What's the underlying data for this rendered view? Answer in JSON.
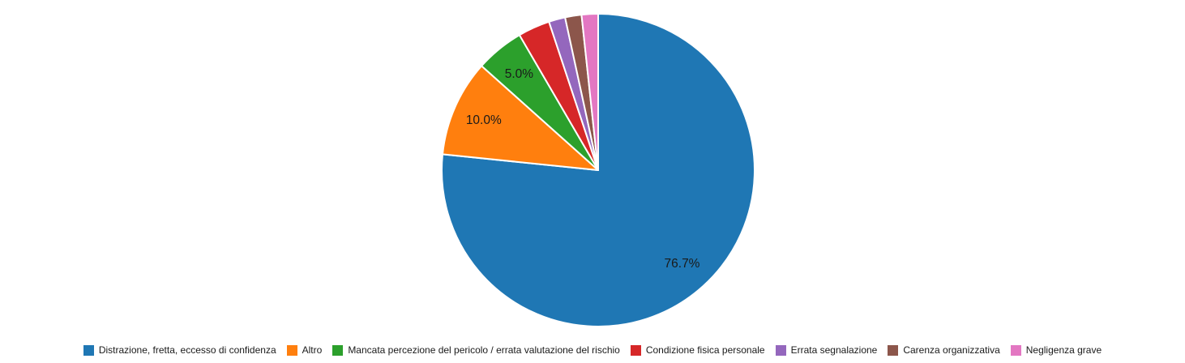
{
  "chart_data": {
    "type": "pie",
    "title": "",
    "start_angle_deg": 90,
    "direction": "clockwise",
    "legend_position": "bottom",
    "pct_label_distance_frac": 0.8,
    "text_color": "#1a1a1a",
    "background_color": "#ffffff",
    "slice_border_color": "#ffffff",
    "slices": [
      {
        "label": "Distrazione, fretta, eccesso di confidenza",
        "value_pct": 76.7,
        "color": "#1f77b4",
        "pct_label": "76.7%"
      },
      {
        "label": "Altro",
        "value_pct": 10.0,
        "color": "#ff7f0e",
        "pct_label": "10.0%"
      },
      {
        "label": "Mancata percezione del pericolo / errata valutazione del rischio",
        "value_pct": 5.0,
        "color": "#2ca02c",
        "pct_label": "5.0%"
      },
      {
        "label": "Condizione fisica personale",
        "value_pct": 3.3,
        "color": "#d62728",
        "pct_label": ""
      },
      {
        "label": "Errata segnalazione",
        "value_pct": 1.7,
        "color": "#9467bd",
        "pct_label": ""
      },
      {
        "label": "Carenza organizzativa",
        "value_pct": 1.7,
        "color": "#8c564b",
        "pct_label": ""
      },
      {
        "label": "Negligenza grave",
        "value_pct": 1.7,
        "color": "#e377c2",
        "pct_label": ""
      }
    ]
  }
}
